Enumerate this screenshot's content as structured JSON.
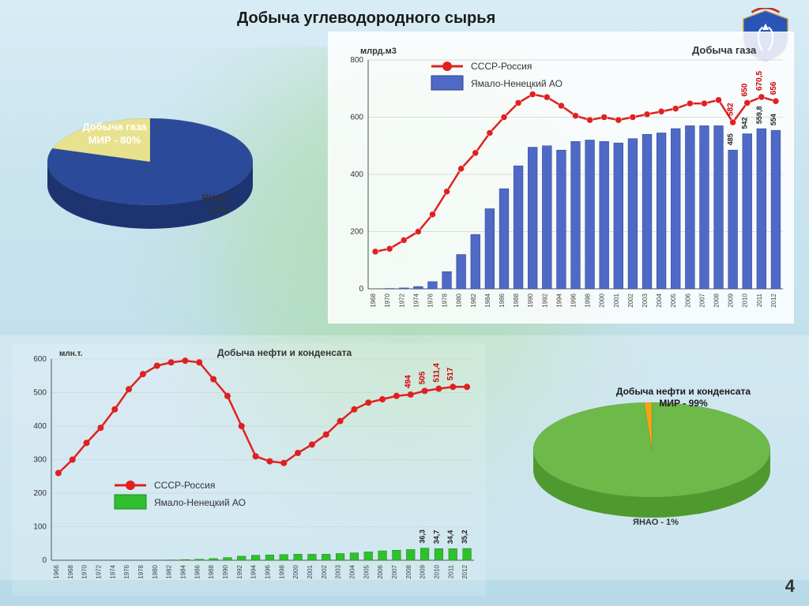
{
  "title": "Добыча углеводородного сырья",
  "title_fontsize": 20,
  "title_color": "#1a1a1a",
  "page_number": 4,
  "background_colors": {
    "top": "#d8ecf5",
    "bottom": "#b8dae8"
  },
  "pie_gas": {
    "type": "pie",
    "title": "Добыча газа",
    "slices": [
      {
        "label": "МИР - 80%",
        "value": 80,
        "color": "#2b4b9a",
        "side_color": "#1d3470",
        "text_color": "#ffffff"
      },
      {
        "label": "ЯНАО - 20%",
        "value": 20,
        "color": "#e8e28f",
        "side_color": "#c9c270",
        "text_color": "#333333"
      }
    ],
    "tilt": 0.4
  },
  "pie_oil": {
    "type": "pie",
    "title": "Добыча нефти и конденсата",
    "slices": [
      {
        "label": "МИР - 99%",
        "value": 99,
        "color": "#6db94a",
        "side_color": "#4f9a2f",
        "text_color": "#1a1a1a"
      },
      {
        "label": "ЯНАО - 1%",
        "value": 1,
        "color": "#f2a518",
        "side_color": "#cf8500",
        "text_color": "#333333"
      }
    ],
    "tilt": 0.4
  },
  "gas_chart": {
    "type": "bar+line",
    "title": "Добыча газа",
    "y_title": "млрд.м3",
    "ylim": [
      0,
      800
    ],
    "ytick_step": 200,
    "title_fontsize": 13,
    "grid_color": "#bfbfbf",
    "background": "#ffffff",
    "line_color": "#e02020",
    "line_width": 2.5,
    "marker_color": "#e02020",
    "marker_size": 4,
    "bar_color": "#4f69c6",
    "bar_border": "#2c3e8a",
    "bar_width": 0.65,
    "legend": {
      "line": "СССР-Россия",
      "bar": "Ямало-Ненецкий АО"
    },
    "years": [
      1968,
      1970,
      1972,
      1974,
      1976,
      1978,
      1980,
      1982,
      1984,
      1986,
      1988,
      1990,
      1992,
      1994,
      1996,
      1998,
      2000,
      2001,
      2002,
      2003,
      2004,
      2005,
      2006,
      2007,
      2008,
      2009,
      2010,
      2011,
      2012
    ],
    "line_values": [
      130,
      140,
      170,
      200,
      260,
      340,
      420,
      475,
      545,
      600,
      650,
      680,
      670,
      640,
      605,
      590,
      600,
      590,
      600,
      610,
      620,
      630,
      648,
      648,
      660,
      582,
      650,
      670.5,
      656
    ],
    "bar_values": [
      0,
      1,
      3,
      8,
      25,
      60,
      120,
      190,
      280,
      350,
      430,
      495,
      500,
      485,
      515,
      520,
      515,
      510,
      525,
      540,
      545,
      560,
      570,
      570,
      570,
      485,
      542,
      559.8,
      554
    ],
    "callouts": [
      {
        "year": 2009,
        "value": 582,
        "color": "#d00000"
      },
      {
        "year": 2010,
        "value": 650,
        "color": "#d00000"
      },
      {
        "year": 2011,
        "value": 670.5,
        "text": "670,5",
        "color": "#d00000"
      },
      {
        "year": 2012,
        "value": 656,
        "color": "#d00000"
      }
    ],
    "bar_callouts": [
      {
        "year": 2009,
        "value": 485
      },
      {
        "year": 2010,
        "value": 542
      },
      {
        "year": 2011,
        "value": 559.8,
        "text": "559,8"
      },
      {
        "year": 2012,
        "value": 554
      }
    ]
  },
  "oil_chart": {
    "type": "bar+line",
    "title": "Добыча нефти и конденсата",
    "y_title": "млн.т.",
    "ylim": [
      0,
      600
    ],
    "ytick_step": 100,
    "title_fontsize": 13,
    "grid_color": "#bfbfbf",
    "background": "rgba(255,255,255,0.2)",
    "line_color": "#e02020",
    "line_width": 2.5,
    "marker_color": "#e02020",
    "marker_size": 4,
    "bar_color": "#2fbf2f",
    "bar_border": "#1a8a1a",
    "bar_width": 0.6,
    "legend": {
      "line": "СССР-Россия",
      "bar": "Ямало-Ненецкий АО"
    },
    "years": [
      1966,
      1968,
      1970,
      1972,
      1974,
      1976,
      1978,
      1980,
      1982,
      1984,
      1986,
      1988,
      1990,
      1992,
      1994,
      1996,
      1998,
      2000,
      2001,
      2002,
      2003,
      2004,
      2005,
      2006,
      2007,
      2008,
      2009,
      2010,
      2011,
      2012
    ],
    "line_values": [
      260,
      300,
      350,
      395,
      450,
      510,
      555,
      580,
      590,
      595,
      590,
      540,
      490,
      400,
      310,
      295,
      290,
      320,
      345,
      375,
      415,
      450,
      470,
      480,
      490,
      494,
      505,
      511.4,
      517,
      517
    ],
    "bar_values": [
      0,
      0,
      0,
      0,
      0,
      0,
      0,
      0,
      1,
      2,
      3,
      5,
      8,
      12,
      15,
      16,
      17,
      18,
      18,
      18,
      20,
      22,
      25,
      28,
      30,
      32,
      36.3,
      34.7,
      34.4,
      35.2
    ],
    "callouts": [
      {
        "year": 2008,
        "value": 494,
        "color": "#d00000"
      },
      {
        "year": 2009,
        "value": 505,
        "color": "#d00000"
      },
      {
        "year": 2010,
        "value": 511.4,
        "text": "511,4",
        "color": "#d00000"
      },
      {
        "year": 2011,
        "value": 517,
        "color": "#d00000"
      }
    ],
    "bar_callouts": [
      {
        "year": 2009,
        "value": 36.3,
        "text": "36,3"
      },
      {
        "year": 2010,
        "value": 34.7,
        "text": "34,7"
      },
      {
        "year": 2011,
        "value": 34.4,
        "text": "34,4"
      },
      {
        "year": 2012,
        "value": 35.2,
        "text": "35,2"
      }
    ]
  }
}
